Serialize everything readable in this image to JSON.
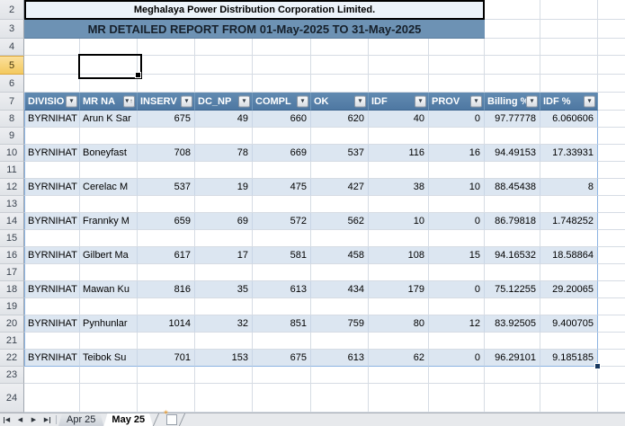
{
  "banner": {
    "company": "Meghalaya Power Distribution Corporation Limited.",
    "report_title": "MR DETAILED REPORT FROM 01-May-2025 TO 31-May-2025"
  },
  "row_headers": {
    "first": 2,
    "last": 24,
    "selected": 5
  },
  "selection": {
    "row": "5",
    "column": "B"
  },
  "table": {
    "headers": [
      {
        "key": "division",
        "label": "DIVISIO",
        "icon": "filter-dropdown"
      },
      {
        "key": "mr_name",
        "label": "MR NA",
        "icon": "filter-sort-ascending"
      },
      {
        "key": "inserv",
        "label": "INSERV",
        "icon": "filter-dropdown"
      },
      {
        "key": "dc_np",
        "label": "DC_NP",
        "icon": "filter-dropdown"
      },
      {
        "key": "compl",
        "label": "COMPL",
        "icon": "filter-dropdown"
      },
      {
        "key": "ok",
        "label": "OK",
        "icon": "filter-dropdown"
      },
      {
        "key": "idf",
        "label": "IDF",
        "icon": "filter-dropdown"
      },
      {
        "key": "prov",
        "label": "PROV",
        "icon": "filter-dropdown"
      },
      {
        "key": "billing",
        "label": "Billing %",
        "icon": "filter-dropdown"
      },
      {
        "key": "idf_pct",
        "label": "IDF %",
        "icon": "filter-dropdown"
      }
    ],
    "rows": [
      {
        "row": 8,
        "division": "BYRNIHAT",
        "mr_name": "Arun K Sar",
        "inserv": "675",
        "dc_np": "49",
        "compl": "660",
        "ok": "620",
        "idf": "40",
        "prov": "0",
        "billing": "97.77778",
        "idf_pct": "6.060606"
      },
      {
        "row": 10,
        "division": "BYRNIHAT",
        "mr_name": "Boneyfast",
        "inserv": "708",
        "dc_np": "78",
        "compl": "669",
        "ok": "537",
        "idf": "116",
        "prov": "16",
        "billing": "94.49153",
        "idf_pct": "17.33931"
      },
      {
        "row": 12,
        "division": "BYRNIHAT",
        "mr_name": "Cerelac M",
        "inserv": "537",
        "dc_np": "19",
        "compl": "475",
        "ok": "427",
        "idf": "38",
        "prov": "10",
        "billing": "88.45438",
        "idf_pct": "8"
      },
      {
        "row": 14,
        "division": "BYRNIHAT",
        "mr_name": "Frannky M",
        "inserv": "659",
        "dc_np": "69",
        "compl": "572",
        "ok": "562",
        "idf": "10",
        "prov": "0",
        "billing": "86.79818",
        "idf_pct": "1.748252"
      },
      {
        "row": 16,
        "division": "BYRNIHAT",
        "mr_name": "Gilbert Ma",
        "inserv": "617",
        "dc_np": "17",
        "compl": "581",
        "ok": "458",
        "idf": "108",
        "prov": "15",
        "billing": "94.16532",
        "idf_pct": "18.58864"
      },
      {
        "row": 18,
        "division": "BYRNIHAT",
        "mr_name": "Mawan Ku",
        "inserv": "816",
        "dc_np": "35",
        "compl": "613",
        "ok": "434",
        "idf": "179",
        "prov": "0",
        "billing": "75.12255",
        "idf_pct": "29.20065"
      },
      {
        "row": 20,
        "division": "BYRNIHAT",
        "mr_name": "Pynhunlar",
        "inserv": "1014",
        "dc_np": "32",
        "compl": "851",
        "ok": "759",
        "idf": "80",
        "prov": "12",
        "billing": "83.92505",
        "idf_pct": "9.400705"
      },
      {
        "row": 22,
        "division": "BYRNIHAT",
        "mr_name": "Teibok Su",
        "inserv": "701",
        "dc_np": "153",
        "compl": "675",
        "ok": "613",
        "idf": "62",
        "prov": "0",
        "billing": "96.29101",
        "idf_pct": "9.185185"
      }
    ],
    "data_row_span": {
      "first": 8,
      "last": 22
    }
  },
  "sheet_tabs": {
    "tabs": [
      {
        "label": "Apr 25",
        "active": false
      },
      {
        "label": "May 25",
        "active": true
      }
    ]
  },
  "colors": {
    "header_bg": "#5481AB",
    "band_bg": "#DCE6F1",
    "banner_bg": "#6D92B4",
    "banner_box_bg": "#ECF3FA",
    "table_border": "#8DB4E2",
    "selected_row_header_bg": "#F5CF66",
    "gridline": "#D6DCE4"
  }
}
